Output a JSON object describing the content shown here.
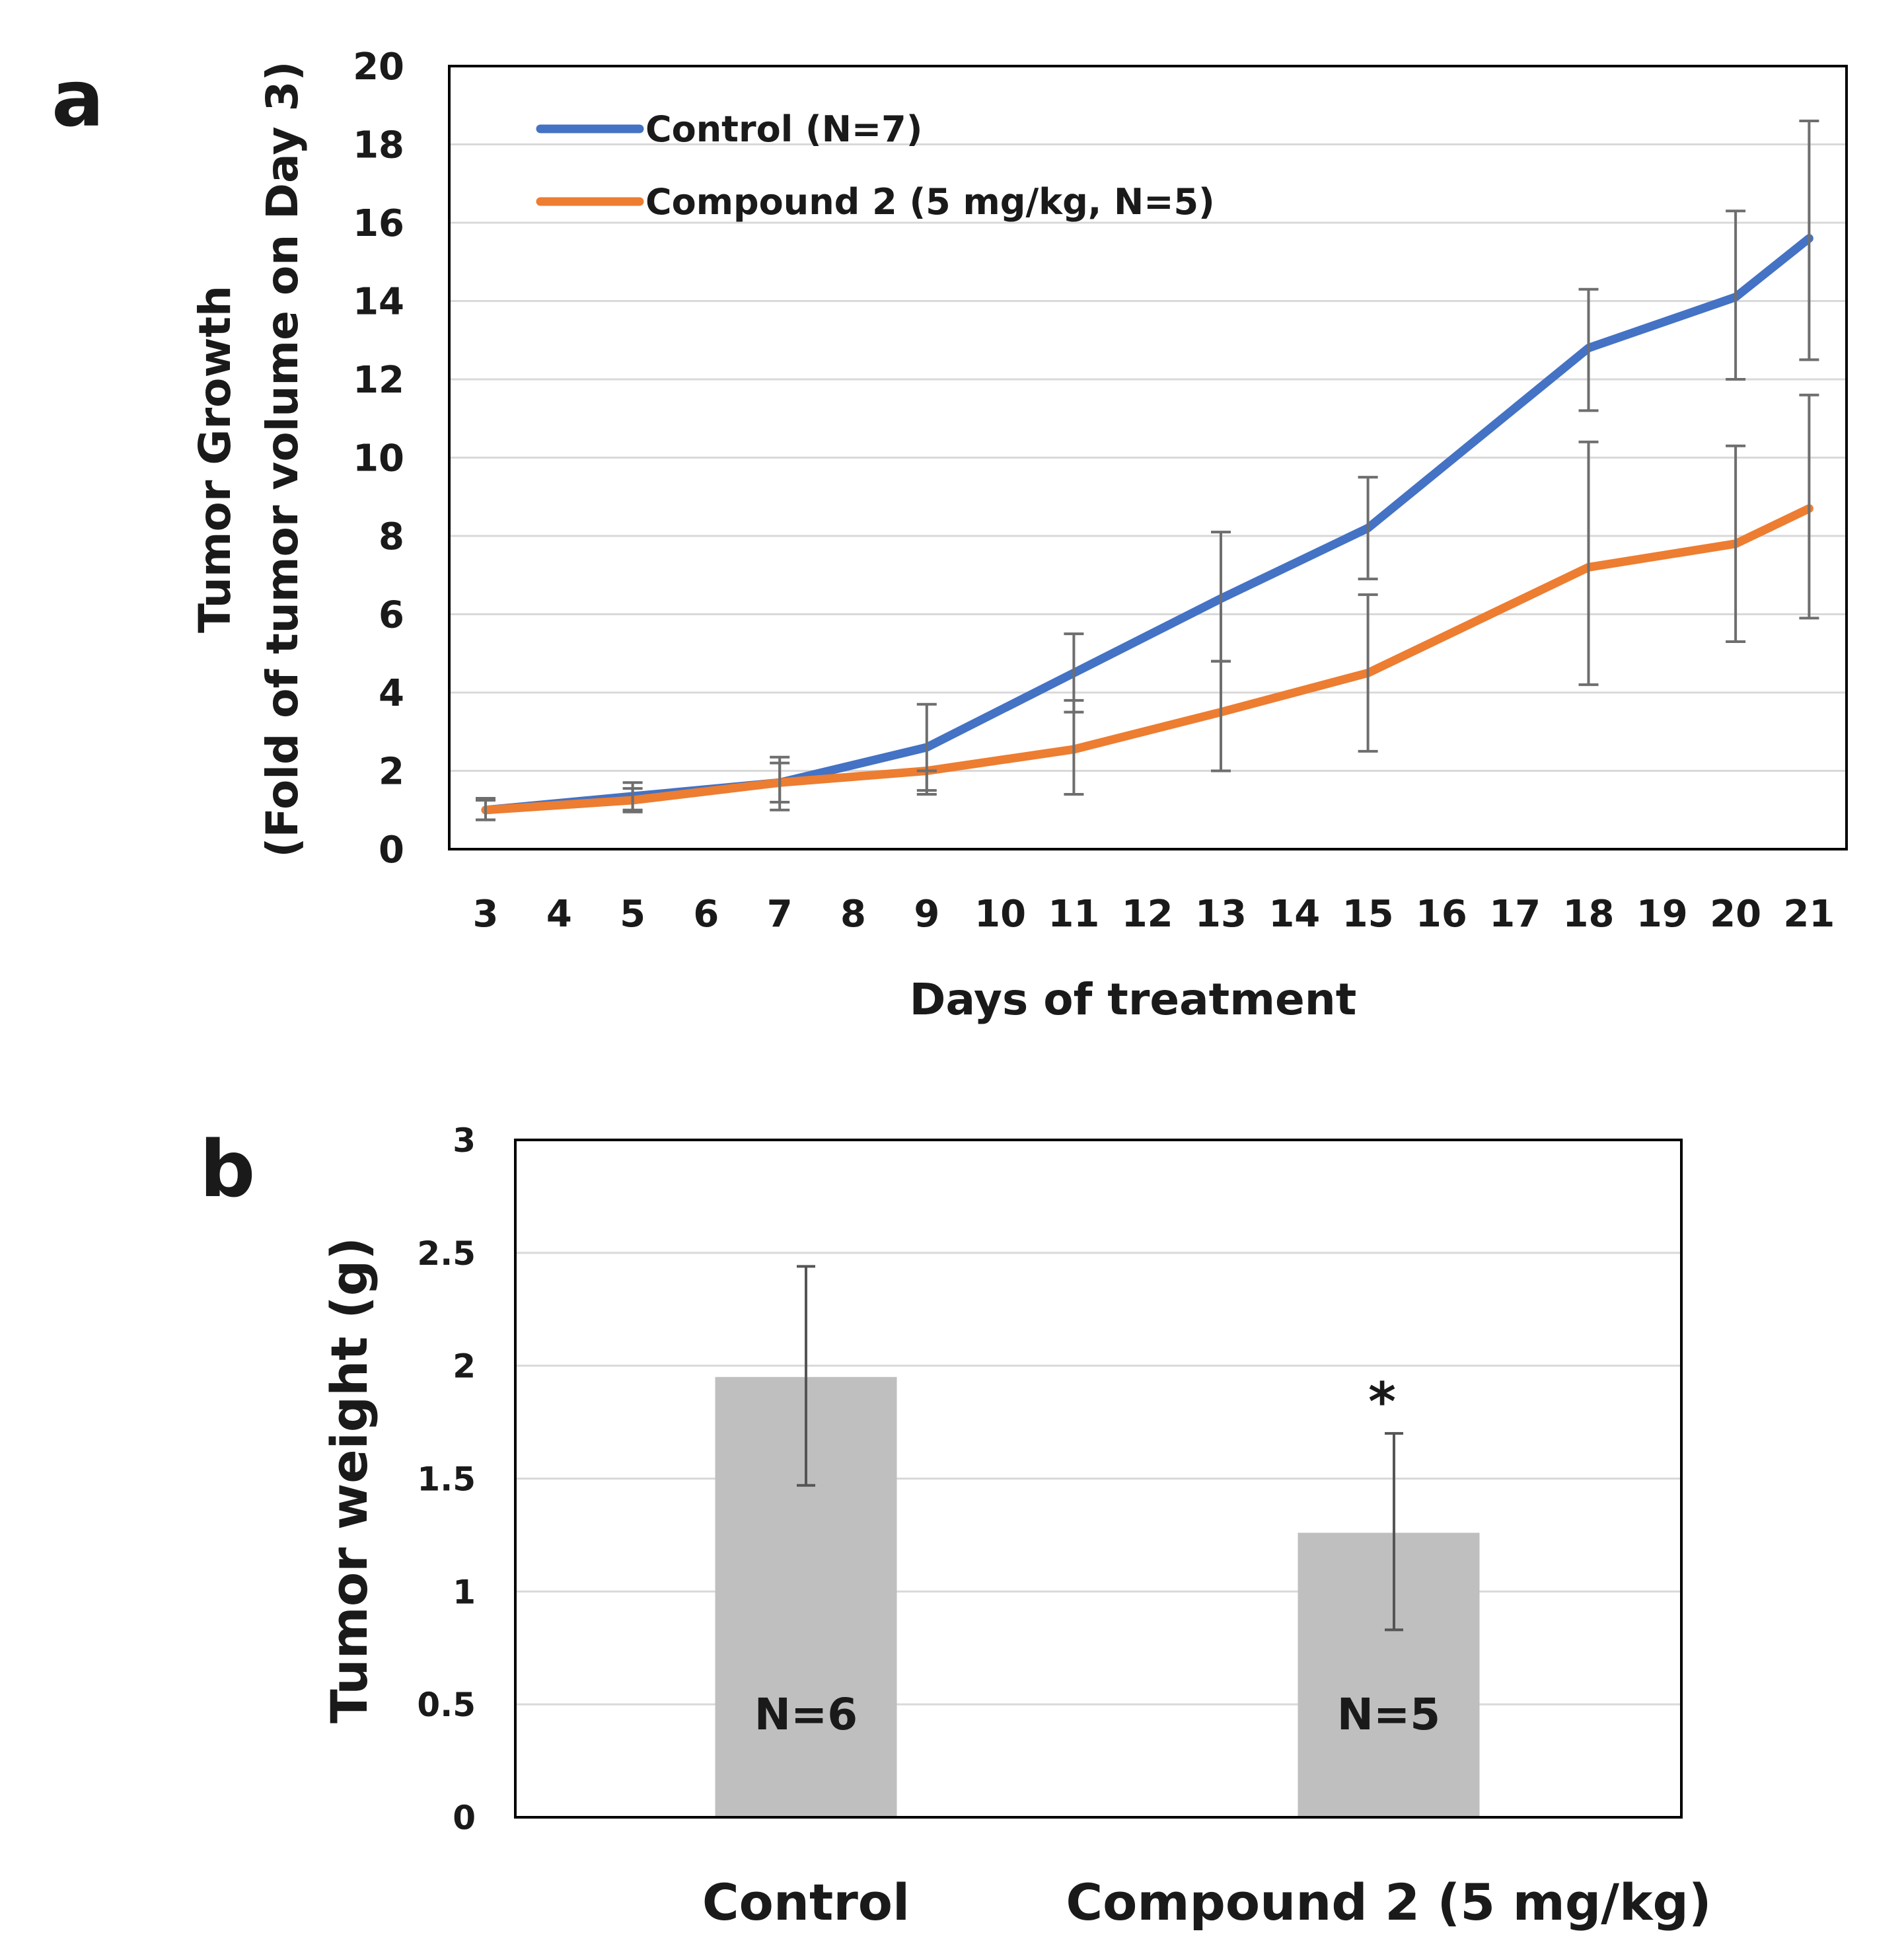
{
  "panel_labels": {
    "a": "a",
    "b": "b"
  },
  "chart_data": [
    {
      "type": "line",
      "panel": "a",
      "title": "",
      "xlabel": "Days of treatment",
      "ylabel_line1": "Tumor Growth",
      "ylabel_line2": "(Fold of tumor volume on Day 3)",
      "ylim": [
        0,
        20
      ],
      "yticks": [
        "0",
        "2",
        "4",
        "6",
        "8",
        "10",
        "12",
        "14",
        "16",
        "18",
        "20"
      ],
      "x_categories": [
        "3",
        "4",
        "5",
        "6",
        "7",
        "8",
        "9",
        "10",
        "11",
        "12",
        "13",
        "14",
        "15",
        "16",
        "17",
        "18",
        "19",
        "20",
        "21"
      ],
      "grid": true,
      "legend_position": "top-left",
      "series": [
        {
          "name": "Control (N=7)",
          "color": "#4472C4",
          "x": [
            "3",
            "5",
            "7",
            "9",
            "11",
            "13",
            "15",
            "18",
            "20",
            "21"
          ],
          "values": [
            1.0,
            1.35,
            1.7,
            2.6,
            4.5,
            6.4,
            8.2,
            12.8,
            14.1,
            15.6
          ],
          "err_high": [
            1.3,
            1.7,
            2.35,
            3.7,
            5.5,
            8.1,
            9.5,
            14.3,
            16.3,
            18.6
          ],
          "err_low": [
            0.75,
            1.0,
            1.0,
            1.4,
            3.5,
            4.8,
            6.9,
            11.2,
            12.0,
            12.5
          ]
        },
        {
          "name": "Compound 2 (5 mg/kg, N=5)",
          "color": "#ED7D31",
          "x": [
            "3",
            "5",
            "7",
            "9",
            "11",
            "13",
            "15",
            "18",
            "20",
            "21"
          ],
          "values": [
            1.0,
            1.25,
            1.7,
            2.0,
            2.55,
            3.5,
            4.5,
            7.2,
            7.8,
            8.7
          ],
          "err_high": [
            1.25,
            1.55,
            2.2,
            2.0,
            3.8,
            4.8,
            6.5,
            10.4,
            10.3,
            11.6
          ],
          "err_low": [
            0.75,
            0.95,
            1.2,
            1.5,
            1.4,
            2.0,
            2.5,
            4.2,
            5.3,
            5.9
          ]
        }
      ]
    },
    {
      "type": "bar",
      "panel": "b",
      "title": "",
      "xlabel": "",
      "ylabel": "Tumor weight (g)",
      "ylim": [
        0,
        3
      ],
      "yticks": [
        "0",
        "0.5",
        "1",
        "1.5",
        "2",
        "2.5",
        "3"
      ],
      "grid": true,
      "categories": [
        "Control",
        "Compound 2 (5 mg/kg)"
      ],
      "values": [
        1.95,
        1.26
      ],
      "err_high": [
        2.44,
        1.7
      ],
      "err_low": [
        1.47,
        0.83
      ],
      "bar_color": "#BFBFBF",
      "bar_labels": [
        "N=6",
        "N=5"
      ],
      "significance": [
        "",
        "*"
      ]
    }
  ]
}
